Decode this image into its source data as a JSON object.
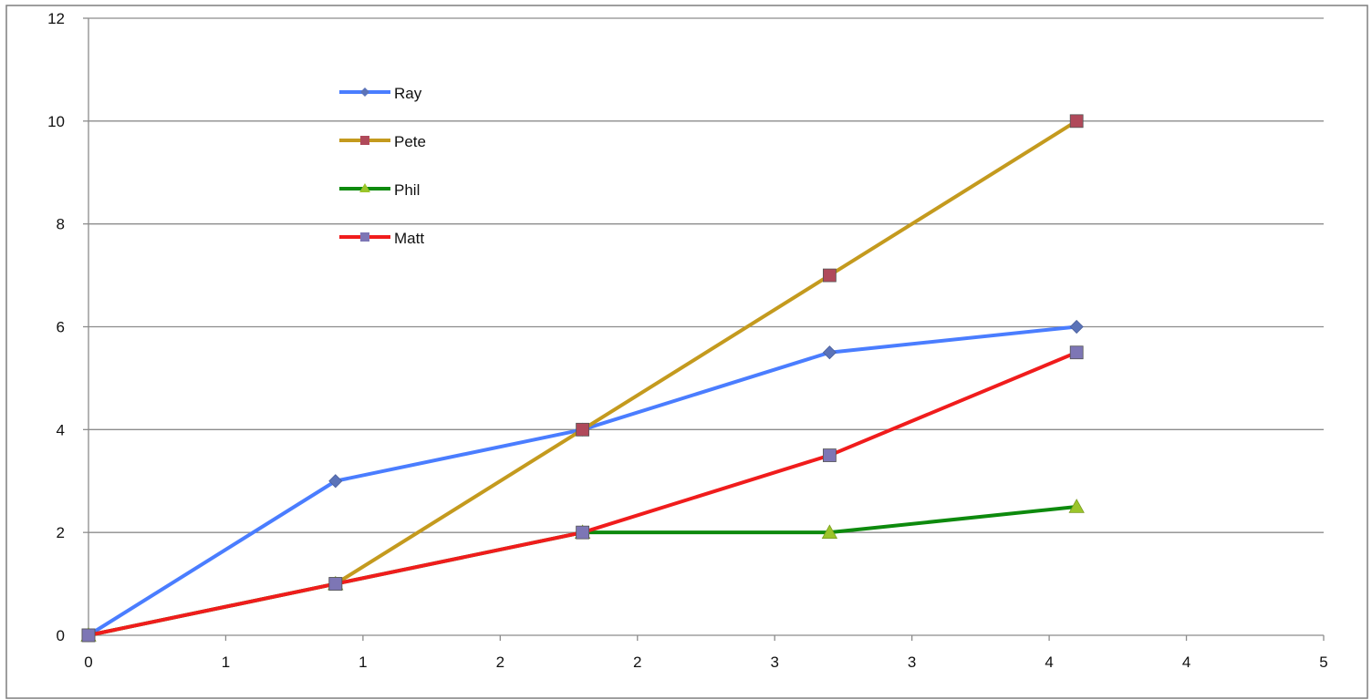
{
  "chart_data": {
    "type": "line",
    "title": "",
    "xlabel": "",
    "ylabel": "",
    "xlim": [
      0,
      5
    ],
    "ylim": [
      0,
      12
    ],
    "x_ticks": [
      "0",
      "1",
      "1",
      "2",
      "2",
      "3",
      "3",
      "4",
      "4",
      "5"
    ],
    "y_ticks": [
      "0",
      "2",
      "4",
      "6",
      "8",
      "10",
      "12"
    ],
    "grid": "horizontal",
    "legend_position": "top-left",
    "series": [
      {
        "name": "Ray",
        "color": "#4a7dff",
        "marker": "diamond",
        "marker_color": "#5b73b8",
        "points": [
          [
            0,
            0
          ],
          [
            1,
            3
          ],
          [
            2,
            4
          ],
          [
            3,
            5.5
          ],
          [
            4,
            6
          ]
        ]
      },
      {
        "name": "Pete",
        "color": "#c49a1e",
        "marker": "square",
        "marker_color": "#b0495a",
        "points": [
          [
            0,
            0
          ],
          [
            1,
            1
          ],
          [
            2,
            4
          ],
          [
            3,
            7
          ],
          [
            4,
            10
          ]
        ]
      },
      {
        "name": "Phil",
        "color": "#0d8a0d",
        "marker": "triangle",
        "marker_color": "#9bc52a",
        "points": [
          [
            0,
            0
          ],
          [
            1,
            1
          ],
          [
            2,
            2
          ],
          [
            3,
            2
          ],
          [
            4,
            2.5
          ]
        ]
      },
      {
        "name": "Matt",
        "color": "#f01c1c",
        "marker": "square",
        "marker_color": "#7d76b5",
        "points": [
          [
            0,
            0
          ],
          [
            1,
            1
          ],
          [
            2,
            2
          ],
          [
            3,
            3.5
          ],
          [
            4,
            5.5
          ]
        ]
      }
    ]
  }
}
